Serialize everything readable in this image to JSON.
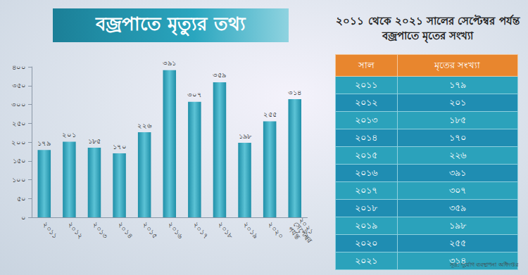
{
  "chart_data": {
    "type": "bar",
    "title": "বজ্রপাতে মৃত্যুর তথ্য",
    "categories": [
      "২০১১",
      "২০১২",
      "২০১৩",
      "২০১৪",
      "২০১৫",
      "২০১৬",
      "২০১৭",
      "২০১৮",
      "২০১৯",
      "২০২০",
      "২০২১ সেপ্টেম্বর পর্যন্ত"
    ],
    "values": [
      179,
      201,
      185,
      170,
      226,
      391,
      307,
      359,
      198,
      255,
      314
    ],
    "value_labels": [
      "১৭৯",
      "২০১",
      "১৮৫",
      "১৭০",
      "২২৬",
      "৩৯১",
      "৩০৭",
      "৩৫৯",
      "১৯৮",
      "২৫৫",
      "৩১৪"
    ],
    "data_labels": true,
    "color": "#1f8fa8",
    "ylim": [
      0,
      400
    ],
    "yticks": [
      {
        "value": 0,
        "label": "০"
      },
      {
        "value": 50,
        "label": "৫০"
      },
      {
        "value": 100,
        "label": "১০০"
      },
      {
        "value": 150,
        "label": "১৫০"
      },
      {
        "value": 200,
        "label": "২০০"
      },
      {
        "value": 250,
        "label": "২৫০"
      },
      {
        "value": 300,
        "label": "৩০০"
      },
      {
        "value": 350,
        "label": "৩৫০"
      },
      {
        "value": 400,
        "label": "৪০০"
      }
    ],
    "grid": false
  },
  "table": {
    "title": "২০১১ থেকে ২০২১ সালের সেপ্টেম্বর পর্যন্ত বজ্রপাতে মৃতের সংখ্যা",
    "header": [
      "সাল",
      "মৃতের সংখ্যা"
    ],
    "rows": [
      [
        "২০১১",
        "১৭৯"
      ],
      [
        "২০১২",
        "২০১"
      ],
      [
        "২০১৩",
        "১৮৫"
      ],
      [
        "২০১৪",
        "১৭০"
      ],
      [
        "২০১৫",
        "২২৬"
      ],
      [
        "২০১৬",
        "৩৯১"
      ],
      [
        "২০১৭",
        "৩০৭"
      ],
      [
        "২০১৮",
        "৩৫৯"
      ],
      [
        "২০১৯",
        "১৯৮"
      ],
      [
        "২০২০",
        "২৫৫"
      ],
      [
        "২০২১",
        "৩১৪"
      ]
    ]
  },
  "source": "সূত্র: দুর্যোগ ব্যবস্থাপনা অধিদপ্তর"
}
